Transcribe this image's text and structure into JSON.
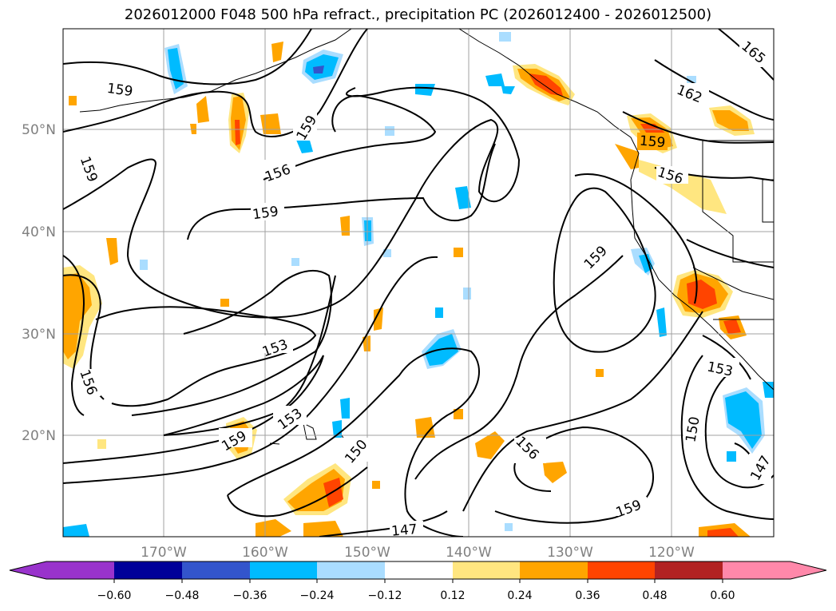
{
  "title": "2026012000 F048 500 hPa refract., precipitation PC (2026012400 - 2026012500)",
  "map": {
    "lat_labels": [
      "50°N",
      "40°N",
      "30°N",
      "20°N"
    ],
    "lon_labels": [
      "170°W",
      "160°W",
      "150°W",
      "140°W",
      "130°W",
      "120°W"
    ],
    "contour_labels": [
      "159",
      "159",
      "159",
      "156",
      "159",
      "153",
      "153",
      "159",
      "156",
      "150",
      "147",
      "156",
      "159",
      "159",
      "162",
      "165",
      "159",
      "156",
      "153",
      "150",
      "147"
    ]
  },
  "colorbar": {
    "ticks": [
      "−0.60",
      "−0.48",
      "−0.36",
      "−0.24",
      "−0.12",
      "0.12",
      "0.24",
      "0.36",
      "0.48",
      "0.60"
    ],
    "colors": [
      "#9933cc",
      "#000099",
      "#3355cc",
      "#00bbff",
      "#aaddff",
      "#ffffff",
      "#ffe680",
      "#ffa500",
      "#ff4400",
      "#b22222",
      "#ff88aa"
    ]
  },
  "colors": {
    "contour": "#000000",
    "grid": "#a0a0a0",
    "light_blue": "#aaddff",
    "blue": "#00bbff",
    "yellow": "#ffe680",
    "orange": "#ffa500",
    "red_orange": "#ff4400"
  }
}
